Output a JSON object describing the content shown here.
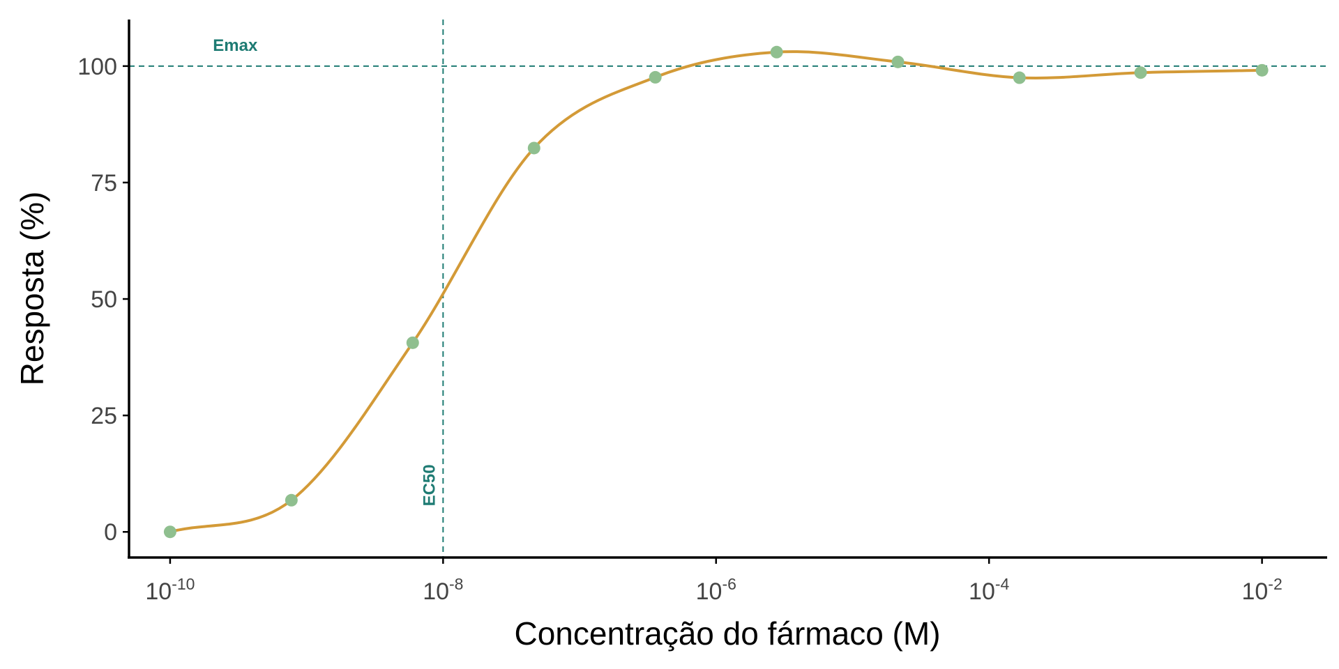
{
  "chart_data": {
    "type": "line",
    "title": "",
    "xlabel": "Concentração do fármaco (M)",
    "ylabel": "Resposta (%)",
    "x_scale": "log10",
    "xlim": [
      5e-11,
      0.03
    ],
    "ylim": [
      -5.5,
      110
    ],
    "grid": false,
    "x_ticks": [
      {
        "value": 1e-10,
        "base": "10",
        "exp": "-10"
      },
      {
        "value": 1e-08,
        "base": "10",
        "exp": "-8"
      },
      {
        "value": 1e-06,
        "base": "10",
        "exp": "-6"
      },
      {
        "value": 0.0001,
        "base": "10",
        "exp": "-4"
      },
      {
        "value": 0.01,
        "base": "10",
        "exp": "-2"
      }
    ],
    "y_ticks": [
      {
        "value": 0,
        "label": "0"
      },
      {
        "value": 25,
        "label": "25"
      },
      {
        "value": 50,
        "label": "50"
      },
      {
        "value": 75,
        "label": "75"
      },
      {
        "value": 100,
        "label": "100"
      }
    ],
    "points": [
      {
        "x": 1e-10,
        "y": 0
      },
      {
        "x": 7.74e-10,
        "y": 6.8
      },
      {
        "x": 5.99e-09,
        "y": 40.6
      },
      {
        "x": 4.64e-08,
        "y": 82.4
      },
      {
        "x": 3.59e-07,
        "y": 97.6
      },
      {
        "x": 2.78e-06,
        "y": 103.0
      },
      {
        "x": 2.15e-05,
        "y": 100.9
      },
      {
        "x": 0.000167,
        "y": 97.5
      },
      {
        "x": 0.00129,
        "y": 98.6
      },
      {
        "x": 0.01,
        "y": 99.1
      }
    ],
    "reference_lines": {
      "emax": {
        "y": 100,
        "label": "Emax",
        "label_x": 3e-10
      },
      "ec50": {
        "x": 1e-08,
        "label": "EC50",
        "label_y": 10
      }
    },
    "colors": {
      "curve": "#d39a37",
      "points": "#8fbf8f",
      "reference": "#1e7b73",
      "axis": "#000000",
      "tick_text": "#444444"
    }
  }
}
